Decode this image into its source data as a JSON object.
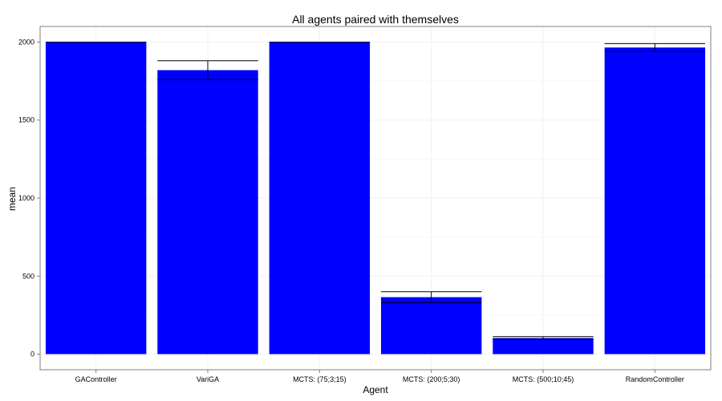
{
  "chart_data": {
    "type": "bar",
    "title": "All agents paired with themselves",
    "xlabel": "Agent",
    "ylabel": "mean",
    "categories": [
      "GAController",
      "VariGA",
      "MCTS: (75;3;15)",
      "MCTS: (200;5;30)",
      "MCTS: (500;10;45)",
      "RandomController"
    ],
    "values": [
      2000,
      1820,
      2000,
      365,
      103,
      1965
    ],
    "error_low": [
      2000,
      1760,
      2000,
      330,
      95,
      1940
    ],
    "error_high": [
      2000,
      1880,
      2000,
      400,
      112,
      1990
    ],
    "ylim": [
      -100,
      2100
    ],
    "yticks": [
      0,
      500,
      1000,
      1500,
      2000
    ],
    "grid": true,
    "legend": "none",
    "colors": {
      "bar": "#0000ff",
      "error_bar": "#000000",
      "grid": "#f2f2f2",
      "panel_border": "#7f7f7f"
    }
  }
}
